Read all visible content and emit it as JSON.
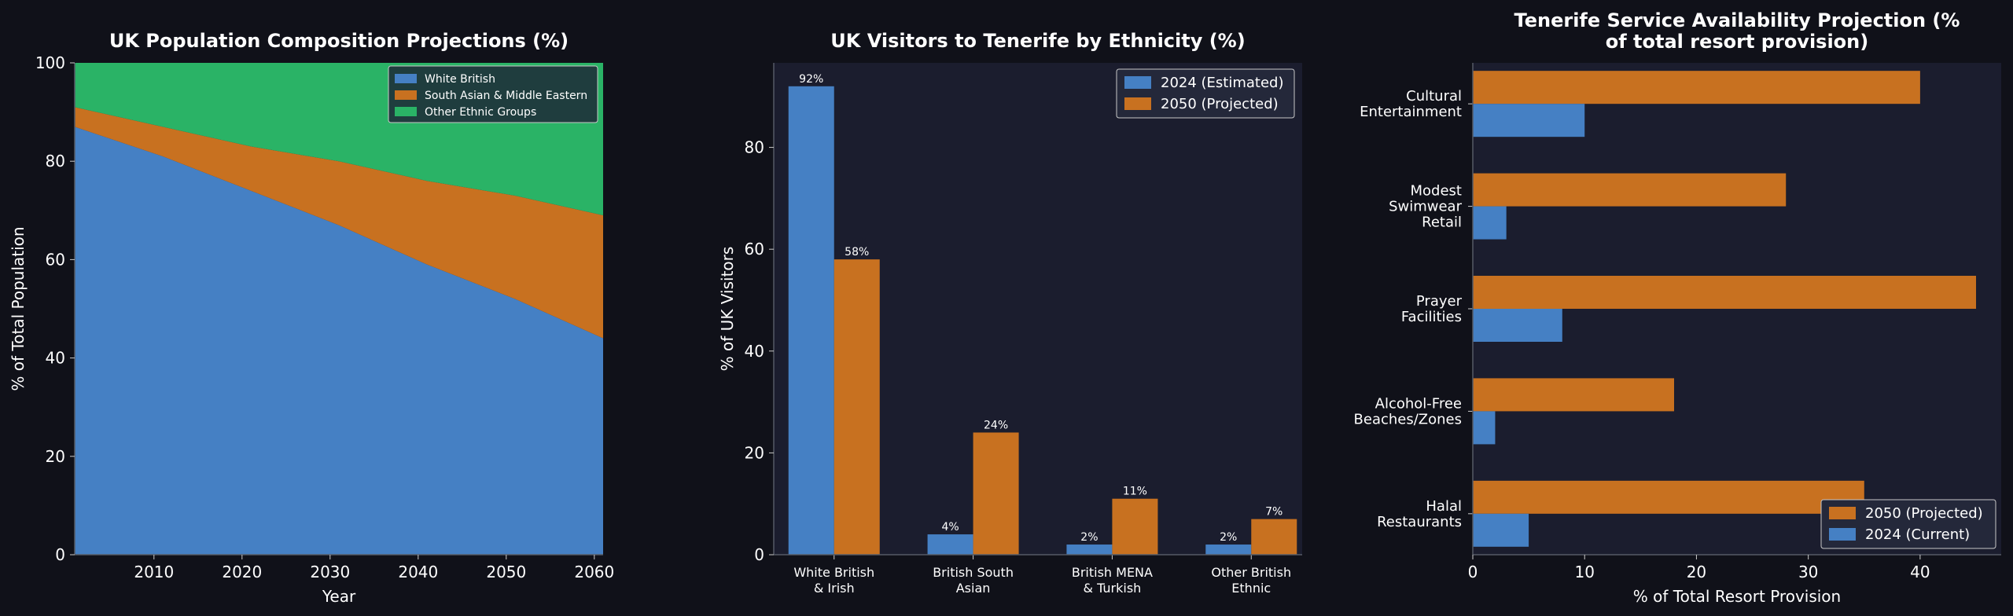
{
  "colors": {
    "background": "#101119",
    "panel": "#1b1d2e",
    "blue": "#4580c4",
    "orange": "#c87120",
    "green": "#2ab366",
    "text": "#ffffff",
    "axis": "#555a66",
    "legend_bg": "#1f3d3e",
    "legend_bg_dark": "#24283a"
  },
  "chart_data": [
    {
      "type": "area",
      "title": "UK Population Composition Projections (%)",
      "xlabel": "Year",
      "ylabel": "% of Total Population",
      "x": [
        2001,
        2011,
        2021,
        2031,
        2041,
        2051,
        2061
      ],
      "xticks": [
        2010,
        2020,
        2030,
        2040,
        2050,
        2060
      ],
      "xlim": [
        2001,
        2061
      ],
      "ylim": [
        0,
        100
      ],
      "yticks": [
        0,
        20,
        40,
        60,
        80,
        100
      ],
      "stacked": true,
      "legend_position": "top-right",
      "series": [
        {
          "name": "White British",
          "values": [
            87,
            81,
            74,
            67,
            59,
            52,
            44
          ]
        },
        {
          "name": "South Asian & Middle Eastern",
          "values": [
            4,
            6,
            9,
            13,
            17,
            21,
            25
          ]
        },
        {
          "name": "Other Ethnic Groups",
          "values": [
            9,
            13,
            17,
            20,
            24,
            27,
            31
          ]
        }
      ]
    },
    {
      "type": "bar",
      "title": "UK Visitors to Tenerife by Ethnicity (%)",
      "xlabel": "",
      "ylabel": "% of UK Visitors",
      "categories": [
        [
          "White British",
          "& Irish"
        ],
        [
          "British South",
          "Asian"
        ],
        [
          "British MENA",
          "& Turkish"
        ],
        [
          "Other British",
          "Ethnic"
        ]
      ],
      "ylim": [
        0,
        96.6
      ],
      "yticks": [
        0,
        20,
        40,
        60,
        80
      ],
      "legend_position": "top-right",
      "series": [
        {
          "name": "2024 (Estimated)",
          "values": [
            92,
            4,
            2,
            2
          ],
          "labels": [
            "92%",
            "4%",
            "2%",
            "2%"
          ]
        },
        {
          "name": "2050 (Projected)",
          "values": [
            58,
            24,
            11,
            7
          ],
          "labels": [
            "58%",
            "24%",
            "11%",
            "7%"
          ]
        }
      ]
    },
    {
      "type": "bar",
      "orientation": "horizontal",
      "title": [
        "Tenerife Service Availability Projection (%",
        "of total resort provision)"
      ],
      "xlabel": "% of Total Resort Provision",
      "ylabel": "",
      "categories": [
        [
          "Cultural",
          "Entertainment"
        ],
        [
          "Modest",
          "Swimwear",
          "Retail"
        ],
        [
          "Prayer",
          "Facilities"
        ],
        [
          "Alcohol-Free",
          "Beaches/Zones"
        ],
        [
          "Halal",
          "Restaurants"
        ]
      ],
      "xlim": [
        0,
        47.25
      ],
      "xticks": [
        0,
        10,
        20,
        30,
        40
      ],
      "legend_position": "bottom-right",
      "series": [
        {
          "name": "2050 (Projected)",
          "values": [
            40,
            28,
            45,
            18,
            35
          ]
        },
        {
          "name": "2024 (Current)",
          "values": [
            10,
            3,
            8,
            2,
            5
          ]
        }
      ]
    }
  ]
}
